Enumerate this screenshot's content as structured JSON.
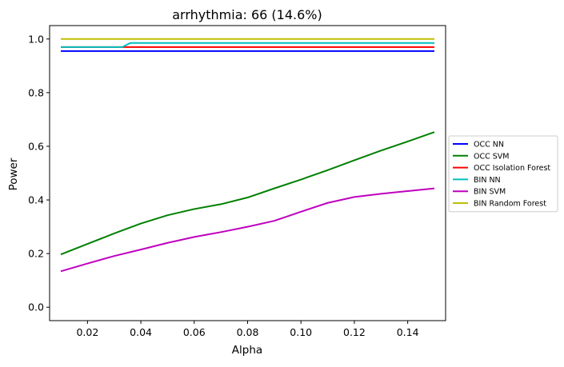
{
  "chart_data": {
    "type": "line",
    "title": "arrhythmia: 66 (14.6%)",
    "xlabel": "Alpha",
    "ylabel": "Power",
    "xlim": [
      0.0058,
      0.1542
    ],
    "ylim": [
      -0.05,
      1.05
    ],
    "xticks": [
      0.02,
      0.04,
      0.06,
      0.08,
      0.1,
      0.12,
      0.14
    ],
    "xtick_labels": [
      "0.02",
      "0.04",
      "0.06",
      "0.08",
      "0.10",
      "0.12",
      "0.14"
    ],
    "yticks": [
      0.0,
      0.2,
      0.4,
      0.6,
      0.8,
      1.0
    ],
    "ytick_labels": [
      "0.0",
      "0.2",
      "0.4",
      "0.6",
      "0.8",
      "1.0"
    ],
    "grid": false,
    "legend_position": "outside-right",
    "series": [
      {
        "name": "OCC NN",
        "color": "#0000ff",
        "x": [
          0.01,
          0.15
        ],
        "y": [
          0.955,
          0.955
        ]
      },
      {
        "name": "OCC SVM",
        "color": "#008000",
        "x": [
          0.01,
          0.02,
          0.03,
          0.04,
          0.05,
          0.06,
          0.07,
          0.08,
          0.09,
          0.1,
          0.11,
          0.12,
          0.13,
          0.14,
          0.15
        ],
        "y": [
          0.197,
          0.236,
          0.275,
          0.312,
          0.343,
          0.366,
          0.384,
          0.409,
          0.443,
          0.476,
          0.511,
          0.548,
          0.584,
          0.618,
          0.653
        ]
      },
      {
        "name": "OCC Isolation Forest",
        "color": "#ff0000",
        "x": [
          0.01,
          0.15
        ],
        "y": [
          0.97,
          0.97
        ]
      },
      {
        "name": "BIN NN",
        "color": "#00bfbf",
        "x": [
          0.01,
          0.033,
          0.036,
          0.15
        ],
        "y": [
          0.97,
          0.97,
          0.985,
          0.985
        ]
      },
      {
        "name": "BIN SVM",
        "color": "#bf00bf",
        "x": [
          0.01,
          0.02,
          0.03,
          0.04,
          0.05,
          0.06,
          0.07,
          0.08,
          0.09,
          0.1,
          0.11,
          0.12,
          0.13,
          0.14,
          0.15
        ],
        "y": [
          0.134,
          0.163,
          0.191,
          0.215,
          0.24,
          0.262,
          0.28,
          0.3,
          0.322,
          0.356,
          0.389,
          0.411,
          0.423,
          0.433,
          0.443
        ]
      },
      {
        "name": "BIN Random Forest",
        "color": "#bfbf00",
        "x": [
          0.01,
          0.15
        ],
        "y": [
          1.0,
          1.0
        ]
      }
    ]
  }
}
